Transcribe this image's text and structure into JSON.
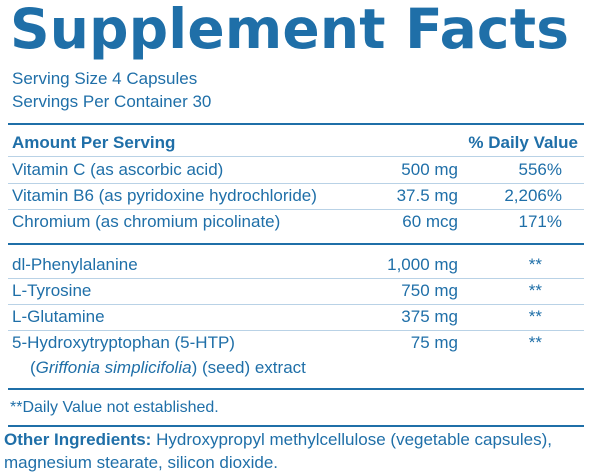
{
  "title": "Supplement Facts",
  "serving_size": "Serving Size 4 Capsules",
  "servings_per_container": "Servings Per Container 30",
  "header": {
    "amount": "Amount Per Serving",
    "daily_value": "% Daily Value"
  },
  "vitamins": [
    {
      "name": "Vitamin C (as ascorbic acid)",
      "amount": "500 mg",
      "dv": "556%"
    },
    {
      "name": "Vitamin B6 (as pyridoxine hydrochloride)",
      "amount": "37.5 mg",
      "dv": "2,206%"
    },
    {
      "name": "Chromium (as chromium picolinate)",
      "amount": "60 mcg",
      "dv": "171%"
    }
  ],
  "others": [
    {
      "name": "dl-Phenylalanine",
      "amount": "1,000 mg",
      "dv": "**"
    },
    {
      "name": "L-Tyrosine",
      "amount": "750 mg",
      "dv": "**"
    },
    {
      "name": "L-Glutamine",
      "amount": "375 mg",
      "dv": "**"
    },
    {
      "name": "5-Hydroxytryptophan (5-HTP)",
      "amount": "75 mg",
      "dv": "**"
    }
  ],
  "htp_source": {
    "open": "(",
    "species": "Griffonia simplicifolia",
    "rest": ") (seed) extract"
  },
  "footnote": "**Daily Value not established.",
  "other_ingredients": {
    "label": "Other Ingredients:",
    "text": "Hydroxypropyl methylcellulose (vegetable capsules), magnesium stearate, silicon dioxide."
  },
  "colors": {
    "primary": "#1f6fa8",
    "divider": "#b9d2e6",
    "background": "#ffffff"
  }
}
